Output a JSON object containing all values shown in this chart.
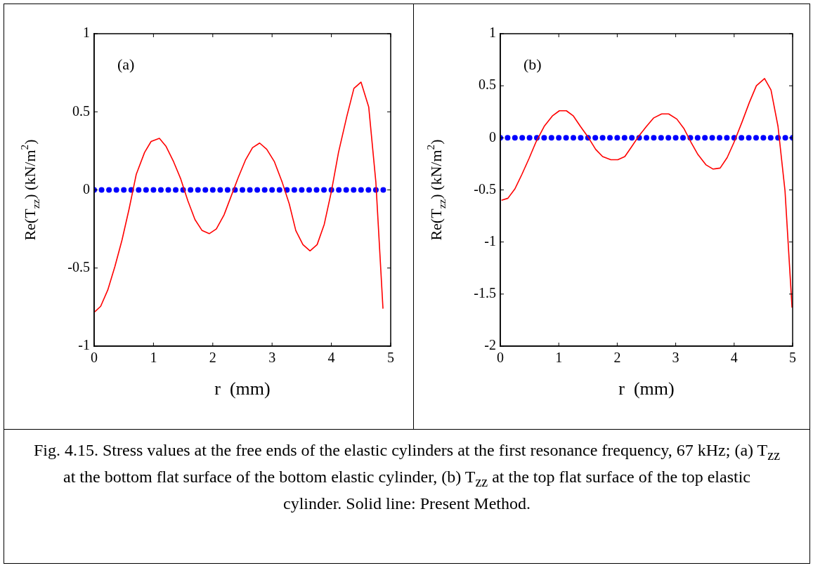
{
  "chart_data": [
    {
      "type": "line",
      "annotations": [
        "(a)",
        "Fig. 4.15. Stress values at the free ends of the elastic cylinders at the first resonance frequency, 67 kHz; (a) T$_{zz}$ at the bottom flat surface of the bottom elastic cylinder, (b) T$_{zz}$ at the top flat surface of the top elastic cylinder. Solid line: Present Method."
      ],
      "xlabel": "r  (mm)",
      "ylabel": "Re(T$_{zz}$) (kN/m$^{2}$)",
      "xlim": [
        0,
        5
      ],
      "ylim": [
        -1,
        1
      ],
      "xticks": [
        0,
        1,
        2,
        3,
        4,
        5
      ],
      "yticks": [
        -1,
        -0.5,
        0,
        0.5,
        1
      ],
      "grid": false,
      "legend": false,
      "series": [
        {
          "color": "#ff0000",
          "marker": "none",
          "x": [
            0.01,
            0.11,
            0.23,
            0.35,
            0.47,
            0.59,
            0.71,
            0.85,
            0.96,
            1.1,
            1.21,
            1.34,
            1.46,
            1.58,
            1.7,
            1.82,
            1.94,
            2.06,
            2.19,
            2.31,
            2.43,
            2.55,
            2.67,
            2.79,
            2.91,
            3.04,
            3.17,
            3.29,
            3.4,
            3.52,
            3.64,
            3.76,
            3.88,
            4.0,
            4.12,
            4.26,
            4.38,
            4.5,
            4.63,
            4.75,
            4.87
          ],
          "values": [
            -0.78,
            -0.745,
            -0.64,
            -0.49,
            -0.32,
            -0.12,
            0.1,
            0.24,
            0.31,
            0.33,
            0.28,
            0.18,
            0.07,
            -0.07,
            -0.19,
            -0.26,
            -0.28,
            -0.25,
            -0.16,
            -0.04,
            0.08,
            0.19,
            0.27,
            0.3,
            0.26,
            0.18,
            0.05,
            -0.09,
            -0.26,
            -0.35,
            -0.39,
            -0.35,
            -0.22,
            -0.01,
            0.24,
            0.47,
            0.65,
            0.69,
            0.53,
            0.05,
            -0.76
          ]
        },
        {
          "type": "scatter",
          "color": "#0000ff",
          "marker": "circle",
          "x": [
            0,
            0.125,
            0.25,
            0.375,
            0.5,
            0.625,
            0.75,
            0.875,
            1,
            1.125,
            1.25,
            1.375,
            1.5,
            1.625,
            1.75,
            1.875,
            2,
            2.125,
            2.25,
            2.375,
            2.5,
            2.625,
            2.75,
            2.875,
            3,
            3.125,
            3.25,
            3.375,
            3.5,
            3.625,
            3.75,
            3.875,
            4,
            4.125,
            4.25,
            4.375,
            4.5,
            4.625,
            4.75,
            4.875
          ],
          "values": [
            0,
            0,
            0,
            0,
            0,
            0,
            0,
            0,
            0,
            0,
            0,
            0,
            0,
            0,
            0,
            0,
            0,
            0,
            0,
            0,
            0,
            0,
            0,
            0,
            0,
            0,
            0,
            0,
            0,
            0,
            0,
            0,
            0,
            0,
            0,
            0,
            0,
            0,
            0,
            0
          ]
        }
      ]
    },
    {
      "type": "line",
      "annotations": [
        "(b)"
      ],
      "xlabel": "r  (mm)",
      "ylabel": "Re(T$_{zz}$) (kN/m$^{2}$)",
      "xlim": [
        0,
        5
      ],
      "ylim": [
        -2,
        1
      ],
      "xticks": [
        0,
        1,
        2,
        3,
        4,
        5
      ],
      "yticks": [
        -2,
        -1.5,
        -1,
        -0.5,
        0,
        0.5,
        1
      ],
      "grid": false,
      "legend": false,
      "series": [
        {
          "color": "#ff0000",
          "marker": "none",
          "x": [
            0.02,
            0.13,
            0.25,
            0.37,
            0.49,
            0.61,
            0.75,
            0.89,
            1.01,
            1.13,
            1.25,
            1.37,
            1.51,
            1.63,
            1.75,
            1.89,
            2.01,
            2.13,
            2.24,
            2.36,
            2.5,
            2.62,
            2.76,
            2.88,
            3.02,
            3.14,
            3.26,
            3.38,
            3.52,
            3.64,
            3.76,
            3.88,
            4.0,
            4.14,
            4.26,
            4.38,
            4.52,
            4.63,
            4.75,
            4.87,
            4.99
          ],
          "values": [
            -0.6,
            -0.58,
            -0.49,
            -0.35,
            -0.2,
            -0.04,
            0.11,
            0.21,
            0.26,
            0.26,
            0.21,
            0.11,
            0,
            -0.11,
            -0.18,
            -0.21,
            -0.21,
            -0.18,
            -0.09,
            0.01,
            0.11,
            0.19,
            0.23,
            0.23,
            0.18,
            0.09,
            -0.04,
            -0.16,
            -0.26,
            -0.3,
            -0.29,
            -0.19,
            -0.04,
            0.16,
            0.34,
            0.5,
            0.57,
            0.46,
            0.11,
            -0.51,
            -1.63
          ]
        },
        {
          "type": "scatter",
          "color": "#0000ff",
          "marker": "circle",
          "x": [
            0,
            0.125,
            0.25,
            0.375,
            0.5,
            0.625,
            0.75,
            0.875,
            1,
            1.125,
            1.25,
            1.375,
            1.5,
            1.625,
            1.75,
            1.875,
            2,
            2.125,
            2.25,
            2.375,
            2.5,
            2.625,
            2.75,
            2.875,
            3,
            3.125,
            3.25,
            3.375,
            3.5,
            3.625,
            3.75,
            3.875,
            4,
            4.125,
            4.25,
            4.375,
            4.5,
            4.625,
            4.75,
            4.875,
            5
          ],
          "values": [
            0,
            0,
            0,
            0,
            0,
            0,
            0,
            0,
            0,
            0,
            0,
            0,
            0,
            0,
            0,
            0,
            0,
            0,
            0,
            0,
            0,
            0,
            0,
            0,
            0,
            0,
            0,
            0,
            0,
            0,
            0,
            0,
            0,
            0,
            0,
            0,
            0,
            0,
            0,
            0,
            0
          ]
        }
      ]
    }
  ]
}
